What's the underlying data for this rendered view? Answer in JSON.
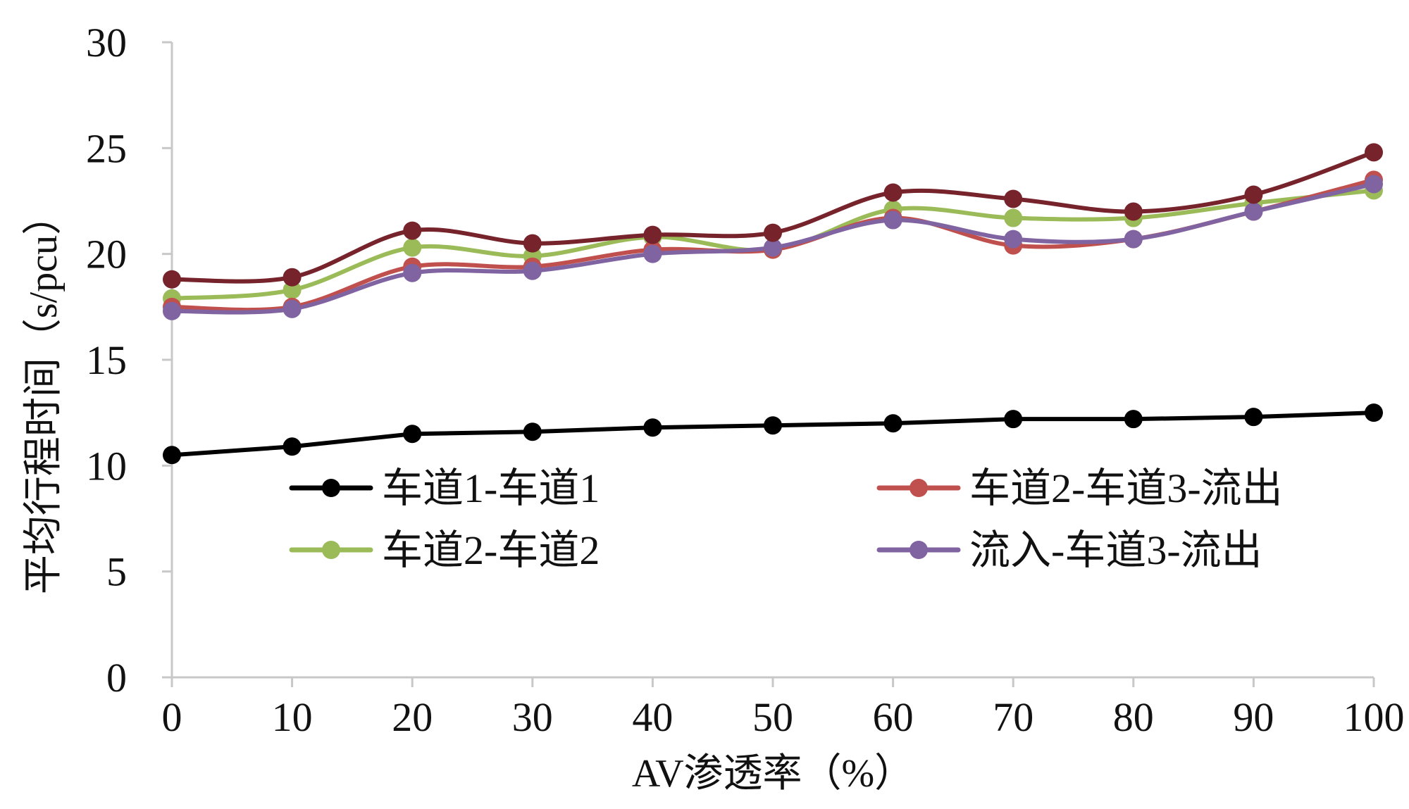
{
  "chart_data": {
    "type": "line",
    "title": "",
    "xlabel": "AV渗透率（%）",
    "ylabel": "平均行程时间（s/pcu）",
    "x": [
      0,
      10,
      20,
      30,
      40,
      50,
      60,
      70,
      80,
      90,
      100
    ],
    "xlim": [
      0,
      100
    ],
    "ylim": [
      0,
      30
    ],
    "yticks": [
      0,
      5,
      10,
      15,
      20,
      25,
      30
    ],
    "grid": false,
    "smooth": true,
    "series": [
      {
        "name": "车道1-车道1",
        "color": "#000000",
        "smooth": false,
        "values": [
          10.5,
          10.9,
          11.5,
          11.6,
          11.8,
          11.9,
          12.0,
          12.2,
          12.2,
          12.3,
          12.5
        ]
      },
      {
        "name": "车道2-车道3-流出",
        "color": "#c0504d",
        "values": [
          17.5,
          17.5,
          19.4,
          19.4,
          20.2,
          20.2,
          21.7,
          20.4,
          20.7,
          22.0,
          23.5
        ]
      },
      {
        "name": "车道2-车道2",
        "color": "#9bbb59",
        "values": [
          17.9,
          18.3,
          20.3,
          19.9,
          20.8,
          20.2,
          22.1,
          21.7,
          21.7,
          22.4,
          23.0
        ]
      },
      {
        "name": "流入-车道3-流出",
        "color": "#8064a2",
        "values": [
          17.3,
          17.4,
          19.1,
          19.2,
          20.0,
          20.3,
          21.6,
          20.7,
          20.7,
          22.0,
          23.3
        ]
      },
      {
        "name": "",
        "color": "#76232b",
        "values": [
          18.8,
          18.9,
          21.1,
          20.5,
          20.9,
          21.0,
          22.9,
          22.6,
          22.0,
          22.8,
          24.8
        ]
      }
    ],
    "legend": [
      {
        "series": 0,
        "position": "left-top"
      },
      {
        "series": 1,
        "position": "right-top"
      },
      {
        "series": 2,
        "position": "left-bottom"
      },
      {
        "series": 3,
        "position": "right-bottom"
      }
    ]
  }
}
